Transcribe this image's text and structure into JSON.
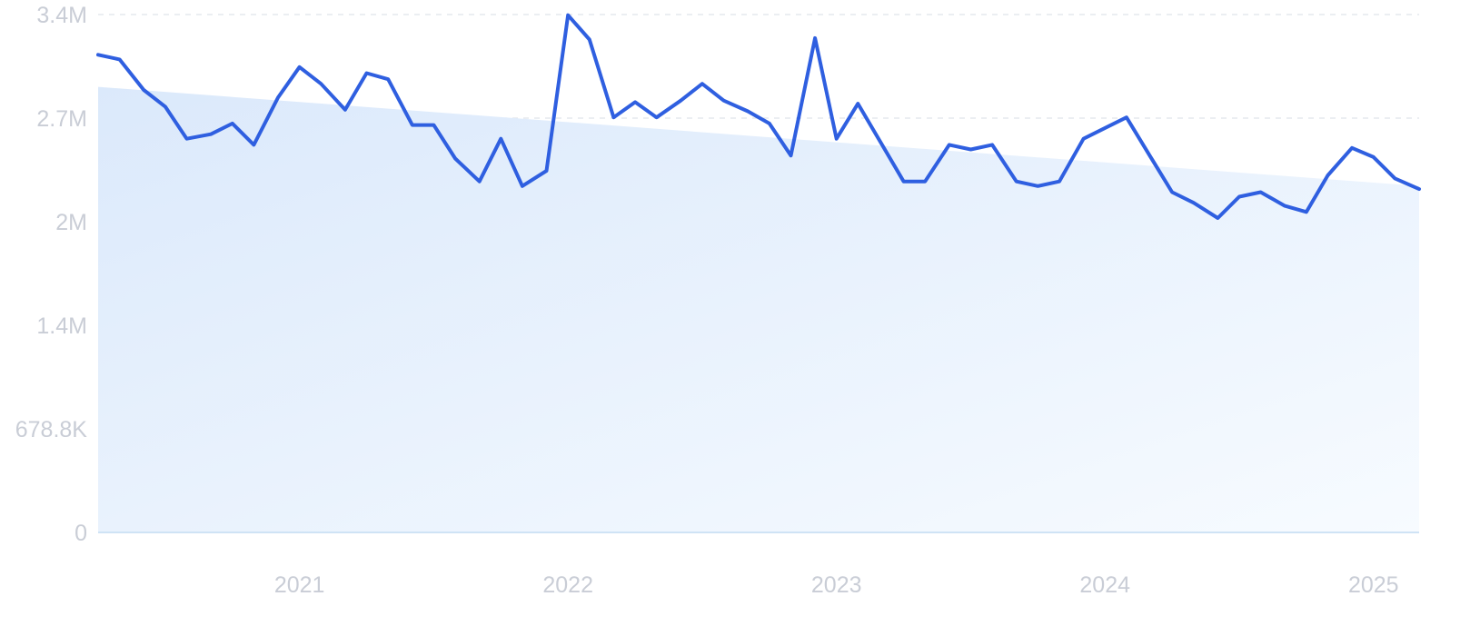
{
  "chart_data": {
    "type": "line",
    "title": "",
    "xlabel": "",
    "ylabel": "",
    "grid": true,
    "legend": "none",
    "colors": {
      "line": "#2f5fe0",
      "trend_top": "#dbe9fb",
      "trend_bottom": "#f7fbff",
      "tick_text": "#c9cdd6"
    },
    "y_ticks": [
      {
        "value": 0,
        "label": "0"
      },
      {
        "value": 678800,
        "label": "678.8K"
      },
      {
        "value": 1357600,
        "label": "1.4M"
      },
      {
        "value": 2036400,
        "label": "2M"
      },
      {
        "value": 2715200,
        "label": "2.7M"
      },
      {
        "value": 3394000,
        "label": "3.4M"
      }
    ],
    "x_ticks": [
      {
        "value": 2021.0,
        "label": "2021"
      },
      {
        "value": 2022.0,
        "label": "2022"
      },
      {
        "value": 2023.0,
        "label": "2023"
      },
      {
        "value": 2024.0,
        "label": "2024"
      },
      {
        "value": 2025.0,
        "label": "2025"
      }
    ],
    "xlim": [
      2020.25,
      2025.17
    ],
    "ylim": [
      0,
      3394000
    ],
    "trend": {
      "start": 2920000,
      "end": 2270000
    },
    "series": [
      {
        "x": [
          2020.25,
          2020.33,
          2020.42,
          2020.5,
          2020.58,
          2020.67,
          2020.75,
          2020.83,
          2020.92,
          2021.0,
          2021.08,
          2021.17,
          2021.25,
          2021.33,
          2021.42,
          2021.5,
          2021.58,
          2021.67,
          2021.75,
          2021.83,
          2021.92,
          2022.0,
          2022.08,
          2022.17,
          2022.25,
          2022.33,
          2022.42,
          2022.5,
          2022.58,
          2022.67,
          2022.75,
          2022.83,
          2022.92,
          2023.0,
          2023.08,
          2023.17,
          2023.25,
          2023.33,
          2023.42,
          2023.5,
          2023.58,
          2023.67,
          2023.75,
          2023.83,
          2023.92,
          2024.0,
          2024.08,
          2024.17,
          2024.25,
          2024.33,
          2024.42,
          2024.5,
          2024.58,
          2024.67,
          2024.75,
          2024.83,
          2024.92,
          2025.0,
          2025.08,
          2025.17
        ],
        "values": [
          3130000,
          3100000,
          2900000,
          2790000,
          2580000,
          2610000,
          2680000,
          2540000,
          2850000,
          3050000,
          2940000,
          2770000,
          3010000,
          2970000,
          2670000,
          2670000,
          2450000,
          2300000,
          2580000,
          2270000,
          2370000,
          3390000,
          3230000,
          2720000,
          2820000,
          2720000,
          2830000,
          2940000,
          2830000,
          2760000,
          2680000,
          2470000,
          3240000,
          2580000,
          2810000,
          2540000,
          2300000,
          2300000,
          2540000,
          2510000,
          2540000,
          2300000,
          2270000,
          2300000,
          2580000,
          2650000,
          2720000,
          2460000,
          2230000,
          2160000,
          2060000,
          2200000,
          2230000,
          2140000,
          2100000,
          2340000,
          2520000,
          2460000,
          2320000,
          2250000
        ]
      }
    ]
  }
}
